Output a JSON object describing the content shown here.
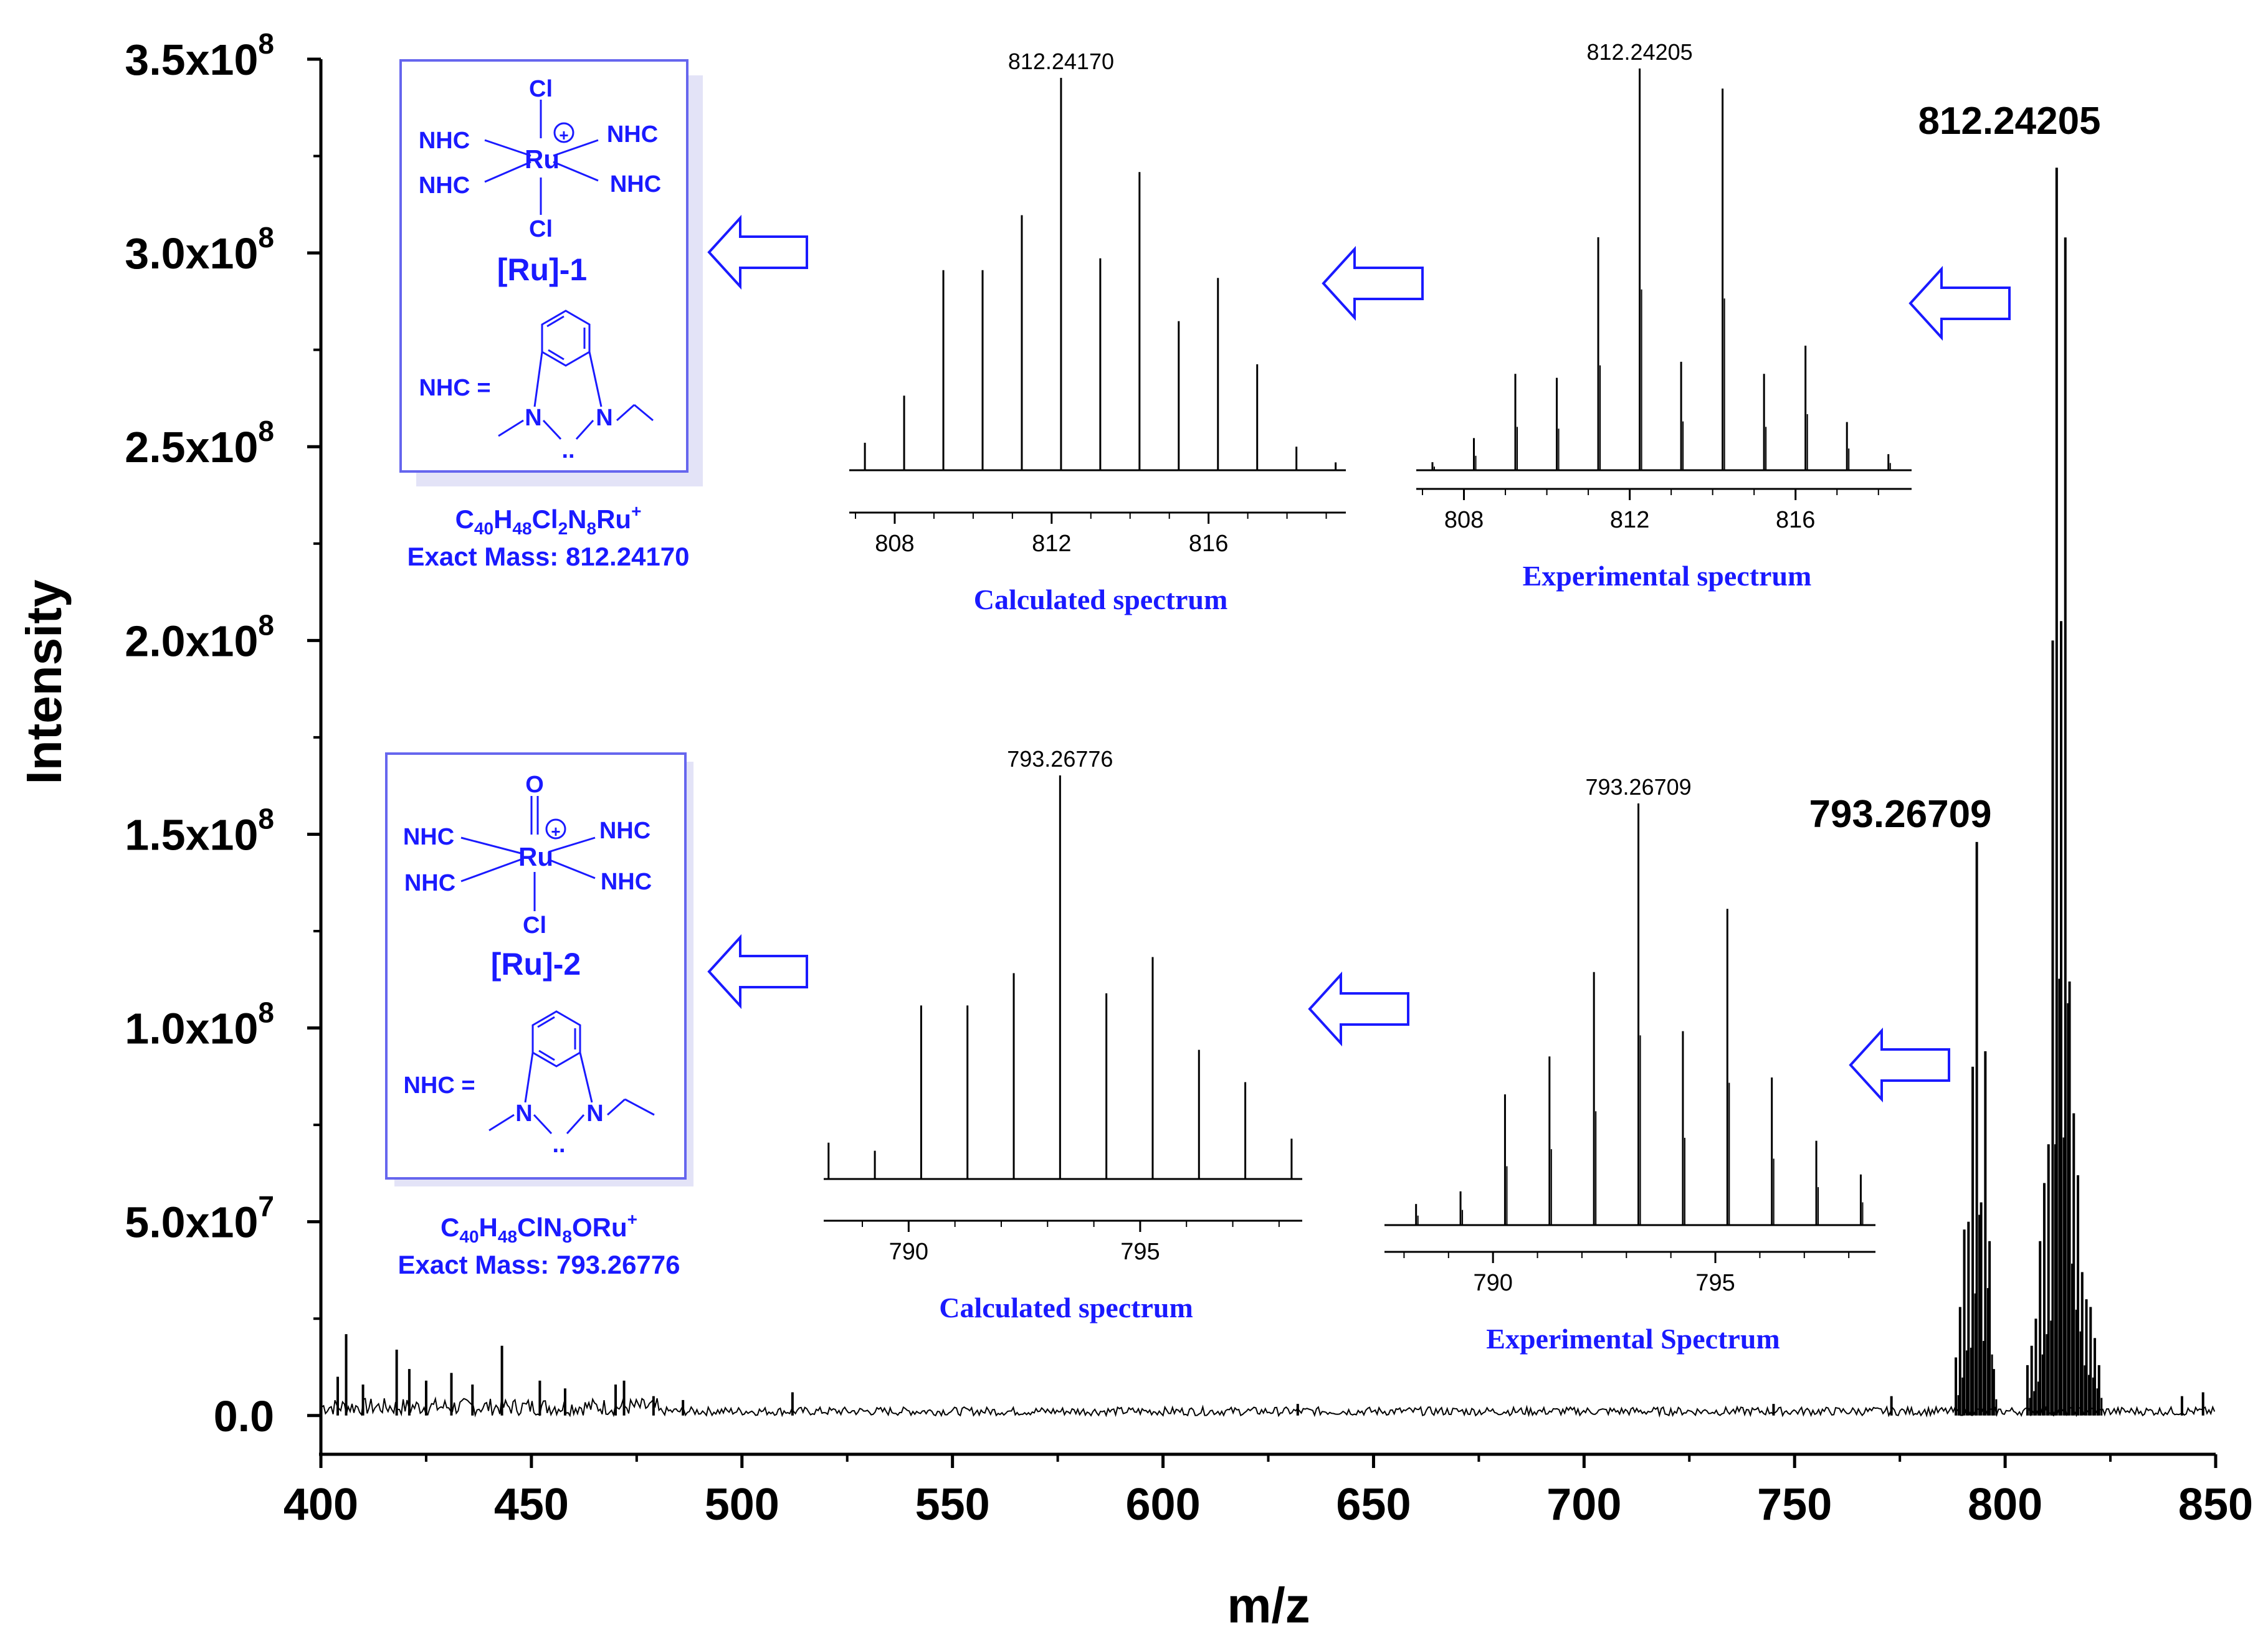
{
  "colors": {
    "ink": "#000000",
    "accent": "#1a1aff",
    "box_border": "#6666ee"
  },
  "chart_data": [
    {
      "name": "main",
      "type": "line",
      "xlabel": "m/z",
      "ylabel": "Intensity",
      "xlim": [
        400,
        850
      ],
      "ylim": [
        -10000000.0,
        350000000.0
      ],
      "x_ticks": [
        {
          "value": 400,
          "label": "400"
        },
        {
          "value": 450,
          "label": "450"
        },
        {
          "value": 500,
          "label": "500"
        },
        {
          "value": 550,
          "label": "550"
        },
        {
          "value": 600,
          "label": "600"
        },
        {
          "value": 650,
          "label": "650"
        },
        {
          "value": 700,
          "label": "700"
        },
        {
          "value": 750,
          "label": "750"
        },
        {
          "value": 800,
          "label": "800"
        },
        {
          "value": 850,
          "label": "850"
        }
      ],
      "y_ticks": [
        {
          "value": 0,
          "mant": "0.0",
          "exp": ""
        },
        {
          "value": 50000000.0,
          "mant": "5.0x10",
          "exp": "7"
        },
        {
          "value": 100000000.0,
          "mant": "1.0x10",
          "exp": "8"
        },
        {
          "value": 150000000.0,
          "mant": "1.5x10",
          "exp": "8"
        },
        {
          "value": 200000000.0,
          "mant": "2.0x10",
          "exp": "8"
        },
        {
          "value": 250000000.0,
          "mant": "2.5x10",
          "exp": "8"
        },
        {
          "value": 300000000.0,
          "mant": "3.0x10",
          "exp": "8"
        },
        {
          "value": 350000000.0,
          "mant": "3.5x10",
          "exp": "8"
        }
      ],
      "peaks": [
        [
          788.3,
          15000000.0
        ],
        [
          789.3,
          28000000.0
        ],
        [
          790.3,
          48000000.0
        ],
        [
          791.3,
          50000000.0
        ],
        [
          792.3,
          90000000.0
        ],
        [
          793.27,
          148000000.0
        ],
        [
          794.3,
          55000000.0
        ],
        [
          795.3,
          94000000.0
        ],
        [
          796.3,
          45000000.0
        ],
        [
          797.3,
          12000000.0
        ],
        [
          805.3,
          13000000.0
        ],
        [
          806.3,
          18000000.0
        ],
        [
          807.3,
          25000000.0
        ],
        [
          808.3,
          45000000.0
        ],
        [
          809.3,
          60000000.0
        ],
        [
          810.3,
          70000000.0
        ],
        [
          811.3,
          200000000.0
        ],
        [
          812.24,
          322000000.0
        ],
        [
          813.3,
          205000000.0
        ],
        [
          814.3,
          304000000.0
        ],
        [
          815.3,
          112000000.0
        ],
        [
          816.3,
          78000000.0
        ],
        [
          817.3,
          62000000.0
        ],
        [
          818.3,
          37000000.0
        ],
        [
          819.3,
          30000000.0
        ],
        [
          820.3,
          28000000.0
        ],
        [
          821.3,
          20000000.0
        ],
        [
          822.3,
          13000000.0
        ]
      ],
      "noise_peaks": [
        [
          404,
          10000000.0
        ],
        [
          406,
          21000000.0
        ],
        [
          410,
          8000000.0
        ],
        [
          418,
          17000000.0
        ],
        [
          421,
          12000000.0
        ],
        [
          425,
          9000000.0
        ],
        [
          431,
          11000000.0
        ],
        [
          436,
          8000000.0
        ],
        [
          443,
          18000000.0
        ],
        [
          452,
          9000000.0
        ],
        [
          458,
          7000000.0
        ],
        [
          470,
          8000000.0
        ],
        [
          472,
          9000000.0
        ],
        [
          479,
          5000000.0
        ],
        [
          486,
          4000000.0
        ],
        [
          512,
          6000000.0
        ],
        [
          632,
          3000000.0
        ],
        [
          745,
          3000000.0
        ],
        [
          773,
          5000000.0
        ],
        [
          842,
          5000000.0
        ],
        [
          847,
          6000000.0
        ]
      ],
      "annotations": [
        {
          "text": "812.24205",
          "x": 812.24
        },
        {
          "text": "793.26709",
          "x": 793.27
        }
      ]
    },
    {
      "name": "calc1",
      "type": "bar",
      "title": "Calculated  spectrum",
      "xlim": [
        807.0,
        819.5
      ],
      "x_ticks": [
        {
          "value": 808,
          "label": "808"
        },
        {
          "value": 812,
          "label": "812"
        },
        {
          "value": 816,
          "label": "816"
        }
      ],
      "peak_label": "812.24170",
      "peak_label_x": 812.24,
      "peaks": [
        [
          807.24,
          0.07
        ],
        [
          808.24,
          0.19
        ],
        [
          809.24,
          0.51
        ],
        [
          810.24,
          0.51
        ],
        [
          811.24,
          0.65
        ],
        [
          812.24,
          1.0
        ],
        [
          813.24,
          0.54
        ],
        [
          814.24,
          0.76
        ],
        [
          815.24,
          0.38
        ],
        [
          816.24,
          0.49
        ],
        [
          817.24,
          0.27
        ],
        [
          818.24,
          0.06
        ],
        [
          819.24,
          0.02
        ]
      ]
    },
    {
      "name": "exp1",
      "type": "bar",
      "title": "Experimental spectrum",
      "xlim": [
        807.0,
        818.8
      ],
      "x_ticks": [
        {
          "value": 808,
          "label": "808"
        },
        {
          "value": 812,
          "label": "812"
        },
        {
          "value": 816,
          "label": "816"
        }
      ],
      "peak_label": "812.24205",
      "peak_label_x": 812.24,
      "peaks": [
        [
          807.24,
          0.02
        ],
        [
          808.24,
          0.08
        ],
        [
          809.24,
          0.24
        ],
        [
          810.24,
          0.23
        ],
        [
          811.24,
          0.58
        ],
        [
          812.24,
          1.0
        ],
        [
          813.24,
          0.27
        ],
        [
          814.24,
          0.95
        ],
        [
          815.24,
          0.24
        ],
        [
          816.24,
          0.31
        ],
        [
          817.24,
          0.12
        ],
        [
          818.24,
          0.04
        ]
      ]
    },
    {
      "name": "calc2",
      "type": "bar",
      "title": "Calculated  spectrum",
      "xlim": [
        788.3,
        798.5
      ],
      "x_ticks": [
        {
          "value": 790,
          "label": "790"
        },
        {
          "value": 795,
          "label": "795"
        }
      ],
      "peak_label": "793.26776",
      "peak_label_x": 793.27,
      "peaks": [
        [
          788.27,
          0.09
        ],
        [
          789.27,
          0.07
        ],
        [
          790.27,
          0.43
        ],
        [
          791.27,
          0.43
        ],
        [
          792.27,
          0.51
        ],
        [
          793.27,
          1.0
        ],
        [
          794.27,
          0.46
        ],
        [
          795.27,
          0.55
        ],
        [
          796.27,
          0.32
        ],
        [
          797.27,
          0.24
        ],
        [
          798.27,
          0.1
        ]
      ]
    },
    {
      "name": "exp2",
      "type": "bar",
      "title": "Experimental Spectrum",
      "xlim": [
        787.7,
        798.6
      ],
      "x_ticks": [
        {
          "value": 790,
          "label": "790"
        },
        {
          "value": 795,
          "label": "795"
        }
      ],
      "peak_label": "793.26709",
      "peak_label_x": 793.27,
      "peaks": [
        [
          788.27,
          0.05
        ],
        [
          789.27,
          0.08
        ],
        [
          790.27,
          0.31
        ],
        [
          791.27,
          0.4
        ],
        [
          792.27,
          0.6
        ],
        [
          793.27,
          1.0
        ],
        [
          794.27,
          0.46
        ],
        [
          795.27,
          0.75
        ],
        [
          796.27,
          0.35
        ],
        [
          797.27,
          0.2
        ],
        [
          798.27,
          0.12
        ]
      ]
    }
  ],
  "structures": {
    "ru1": {
      "top_ligand": "Cl",
      "bottom_ligand": "Cl",
      "metal": "Ru",
      "charge": "+",
      "ligand": "NHC",
      "name": "[Ru]-1",
      "nhc_def": "NHC =",
      "n": "N",
      "lone_pair": "..",
      "formula": {
        "c": "C",
        "c_n": "40",
        "h": "H",
        "h_n": "48",
        "cl": "Cl",
        "cl_n": "2",
        "n": "N",
        "n_n": "8",
        "ru": "Ru",
        "charge": "+"
      },
      "exact_mass": "Exact Mass: 812.24170"
    },
    "ru2": {
      "top_ligand": "O",
      "bottom_ligand": "Cl",
      "metal": "Ru",
      "charge": "+",
      "ligand": "NHC",
      "name": "[Ru]-2",
      "nhc_def": "NHC =",
      "n": "N",
      "lone_pair": "..",
      "formula": {
        "c": "C",
        "c_n": "40",
        "h": "H",
        "h_n": "48",
        "cl": "ClN",
        "n_n": "8",
        "rest": "ORu",
        "charge": "+"
      },
      "exact_mass": "Exact Mass: 793.26776"
    }
  }
}
